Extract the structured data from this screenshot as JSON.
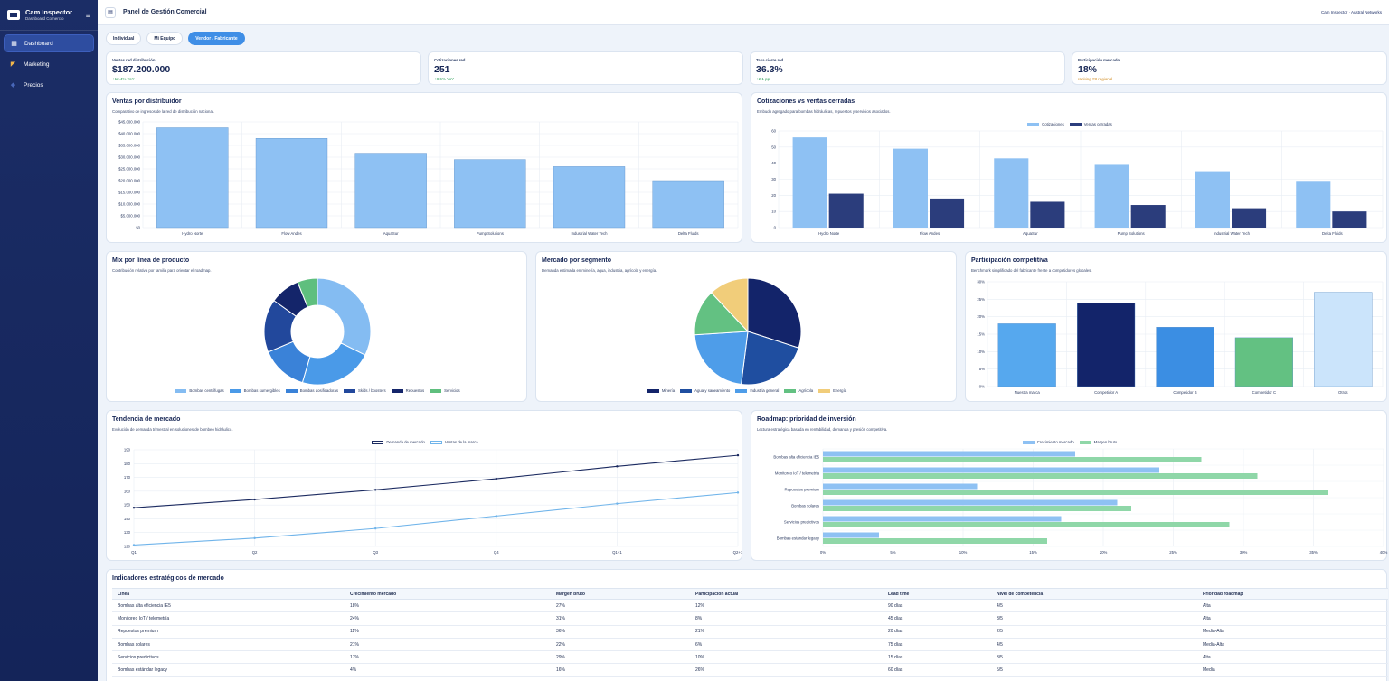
{
  "app": {
    "title": "Cam Inspector",
    "subtitle": "Dashboard Comercio"
  },
  "sidebar": {
    "items": [
      {
        "label": "Dashboard",
        "icon": "dashboard-icon"
      },
      {
        "label": "Marketing",
        "icon": "megaphone-icon"
      },
      {
        "label": "Precios",
        "icon": "price-tag-icon"
      }
    ]
  },
  "topbar": {
    "title": "Panel de Gestión Comercial",
    "user": "Cam Inspector · Austral Networks"
  },
  "segments": [
    "Individual",
    "Mi Equipo",
    "Vendor / Fabricante"
  ],
  "kpis": [
    {
      "label": "Ventas red distribución",
      "value": "$187.200.000",
      "delta": "+12.4% YoY"
    },
    {
      "label": "Cotizaciones red",
      "value": "251",
      "delta": "+8.6% YoY"
    },
    {
      "label": "Tasa cierre red",
      "value": "36.3%",
      "delta": "+2.1 pp"
    },
    {
      "label": "Participación mercado",
      "value": "18%",
      "delta": "ranking #3 regional"
    }
  ],
  "panels": {
    "ventas": {
      "title": "Ventas por distribuidor",
      "subtitle": "Comparativo de ingresos de la red de distribución nacional."
    },
    "cotiz": {
      "title": "Cotizaciones vs ventas cerradas",
      "subtitle": "Embudo agregado para bombas hidráulicas, repuestos y servicios asociados."
    },
    "mix": {
      "title": "Mix por línea de producto",
      "subtitle": "Contribución relativa por familia para orientar el roadmap."
    },
    "mercado": {
      "title": "Mercado por segmento",
      "subtitle": "Demanda estimada en minería, agua, industria, agrícola y energía."
    },
    "part": {
      "title": "Participación competitiva",
      "subtitle": "Benchmark simplificado del fabricante frente a competidores globales."
    },
    "tend": {
      "title": "Tendencia de mercado",
      "subtitle": "Evolución de demanda trimestral en soluciones de bombeo hidráulico."
    },
    "roadmap": {
      "title": "Roadmap: prioridad de inversión",
      "subtitle": "Lectura estratégica basada en rentabilidad, demanda y presión competitiva."
    },
    "indic": {
      "title": "Indicadores estratégicos de mercado"
    }
  },
  "chart_data": [
    {
      "type": "bar",
      "id": "ventas",
      "categories": [
        "Hydro Norte",
        "Flow Andes",
        "AquaSur",
        "Pump Solutions",
        "Industrial Water Tech",
        "Delta Fluids"
      ],
      "values": [
        42500000,
        38000000,
        31700000,
        29000000,
        26000000,
        20000000
      ],
      "ylim": [
        0,
        45000000
      ],
      "yticks": [
        "$0",
        "$5.000.000",
        "$10.000.000",
        "$15.000.000",
        "$20.000.000",
        "$25.000.000",
        "$30.000.000",
        "$35.000.000",
        "$40.000.000",
        "$45.000.000"
      ],
      "color": "#8ec1f3"
    },
    {
      "type": "bar",
      "id": "cotiz",
      "categories": [
        "Hydro Norte",
        "Flow Andes",
        "AquaSur",
        "Pump Solutions",
        "Industrial Water Tech",
        "Delta Fluids"
      ],
      "series": [
        {
          "name": "Cotizaciones",
          "values": [
            56,
            49,
            43,
            39,
            35,
            29
          ],
          "color": "#8ec1f3"
        },
        {
          "name": "Ventas cerradas",
          "values": [
            21,
            18,
            16,
            14,
            12,
            10
          ],
          "color": "#2b3d7c"
        }
      ],
      "ylim": [
        0,
        60
      ],
      "yticks": [
        "0",
        "10",
        "20",
        "30",
        "40",
        "50",
        "60"
      ],
      "legend": "top"
    },
    {
      "type": "pie",
      "id": "mix",
      "donut": true,
      "slices": [
        {
          "name": "Bombas centrífugas",
          "value": 32,
          "color": "#84bcf2"
        },
        {
          "name": "Bombas sumergibles",
          "value": 22,
          "color": "#4a9ae8"
        },
        {
          "name": "Bombas dosificadoras",
          "value": 14,
          "color": "#3a82d8"
        },
        {
          "name": "Skids / boosters",
          "value": 16,
          "color": "#22489c"
        },
        {
          "name": "Repuestos",
          "value": 9,
          "color": "#14256a"
        },
        {
          "name": "Servicios",
          "value": 6,
          "color": "#5fbf7e"
        }
      ],
      "legend": "bottom"
    },
    {
      "type": "pie",
      "id": "mercado",
      "slices": [
        {
          "name": "Minería",
          "value": 30,
          "color": "#13246a"
        },
        {
          "name": "Agua y saneamiento",
          "value": 22,
          "color": "#1f4ea0"
        },
        {
          "name": "Industria general",
          "value": 22,
          "color": "#4e9de9"
        },
        {
          "name": "Agrícola",
          "value": 14,
          "color": "#63c182"
        },
        {
          "name": "Energía",
          "value": 12,
          "color": "#f1cd7a"
        }
      ],
      "legend": "bottom"
    },
    {
      "type": "bar",
      "id": "part",
      "categories": [
        "Nuestra marca",
        "Competidor A",
        "Competidor B",
        "Competidor C",
        "Otros"
      ],
      "values": [
        18,
        24,
        17,
        14,
        27
      ],
      "colors": [
        "#56a8ee",
        "#13246a",
        "#3b8ee3",
        "#63c182",
        "#cbe4fb"
      ],
      "ylim": [
        0,
        30
      ],
      "yticks": [
        "0%",
        "5%",
        "10%",
        "15%",
        "20%",
        "25%",
        "30%"
      ]
    },
    {
      "type": "line",
      "id": "tend",
      "x": [
        "Q1",
        "Q2",
        "Q3",
        "Q4",
        "Q1+1",
        "Q2+1"
      ],
      "series": [
        {
          "name": "Demanda de mercado",
          "values": [
            148,
            154,
            161,
            169,
            178,
            186
          ],
          "color": "#1b2a60"
        },
        {
          "name": "Ventas de la marca",
          "values": [
            121,
            126,
            133,
            142,
            151,
            159
          ],
          "color": "#70b4ea"
        }
      ],
      "ylim": [
        120,
        190
      ],
      "yticks": [
        "120",
        "130",
        "140",
        "150",
        "160",
        "170",
        "180",
        "190"
      ],
      "legend": "top"
    },
    {
      "type": "bar",
      "id": "roadmap",
      "orientation": "horizontal",
      "categories": [
        "Bombas alta eficiencia IE5",
        "Monitoreo IoT / telemetría",
        "Repuestos premium",
        "Bombas solares",
        "Servicios predictivos",
        "Bombas estándar legacy"
      ],
      "series": [
        {
          "name": "Crecimiento mercado",
          "values": [
            18,
            24,
            11,
            21,
            17,
            4
          ],
          "color": "#8ec1f3"
        },
        {
          "name": "Margen bruto",
          "values": [
            27,
            31,
            36,
            22,
            29,
            16
          ],
          "color": "#8fd7a8"
        }
      ],
      "xlim": [
        0,
        40
      ],
      "xticks": [
        "0%",
        "5%",
        "10%",
        "15%",
        "20%",
        "25%",
        "30%",
        "35%",
        "40%"
      ],
      "legend": "top"
    },
    {
      "type": "table",
      "id": "indic",
      "columns": [
        "Línea",
        "Crecimiento mercado",
        "Margen bruto",
        "Participación actual",
        "Lead time",
        "Nivel de competencia",
        "Prioridad roadmap"
      ],
      "rows": [
        [
          "Bombas alta eficiencia IE5",
          "18%",
          "27%",
          "12%",
          "90 días",
          "4/5",
          "Alta"
        ],
        [
          "Monitoreo IoT / telemetría",
          "24%",
          "31%",
          "8%",
          "45 días",
          "3/5",
          "Alta"
        ],
        [
          "Repuestos premium",
          "11%",
          "36%",
          "21%",
          "20 días",
          "2/5",
          "Media-Alta"
        ],
        [
          "Bombas solares",
          "21%",
          "22%",
          "6%",
          "75 días",
          "4/5",
          "Media-Alta"
        ],
        [
          "Servicios predictivos",
          "17%",
          "29%",
          "10%",
          "15 días",
          "3/5",
          "Alta"
        ],
        [
          "Bombas estándar legacy",
          "4%",
          "16%",
          "26%",
          "60 días",
          "5/5",
          "Media"
        ]
      ]
    }
  ]
}
